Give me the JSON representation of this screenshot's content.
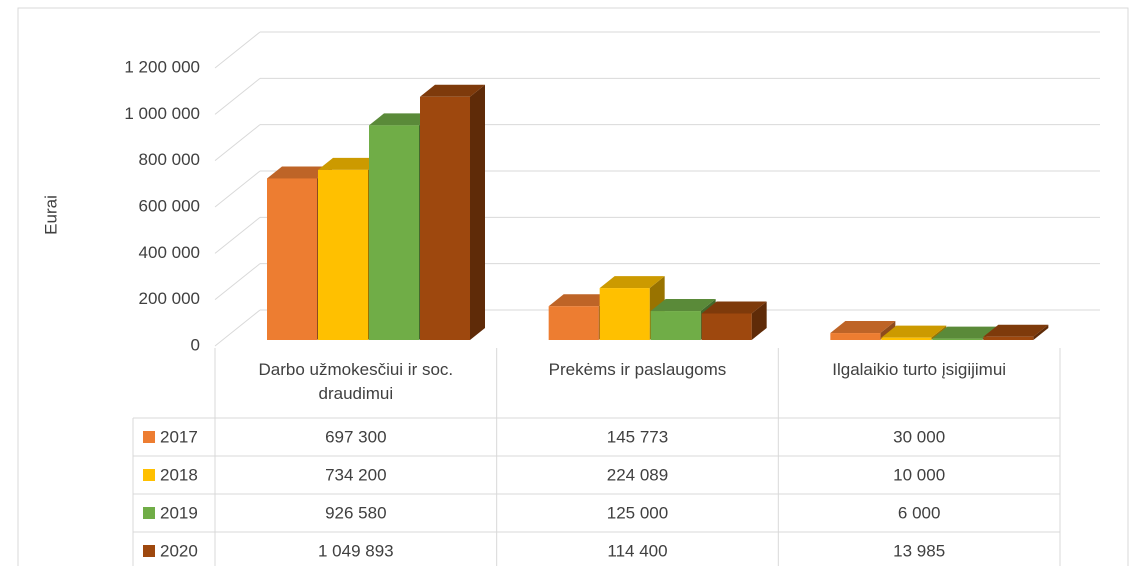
{
  "chart_data": {
    "type": "bar3d",
    "y_label": "Eurai",
    "categories": [
      "Darbo užmokesčiui ir soc. draudimui",
      "Prekėms ir paslaugoms",
      "Ilgalaikio turto įsigijimui"
    ],
    "series": [
      {
        "name": "2017",
        "color": "#ed7d31",
        "values": [
          697300,
          145773,
          30000
        ],
        "value_labels": [
          "697 300",
          "145 773",
          "30 000"
        ]
      },
      {
        "name": "2018",
        "color": "#ffc000",
        "values": [
          734200,
          224089,
          10000
        ],
        "value_labels": [
          "734 200",
          "224 089",
          "10 000"
        ]
      },
      {
        "name": "2019",
        "color": "#70ad47",
        "values": [
          926580,
          125000,
          6000
        ],
        "value_labels": [
          "926 580",
          "125 000",
          "6 000"
        ]
      },
      {
        "name": "2020",
        "color": "#9e480e",
        "values": [
          1049893,
          114400,
          13985
        ],
        "value_labels": [
          "1 049 893",
          "114 400",
          "13 985"
        ]
      }
    ],
    "ylim": [
      0,
      1200000
    ],
    "yticks": [
      0,
      {
        "value": 200000,
        "label": "200 000"
      },
      {
        "value": 400000,
        "label": "400 000"
      },
      {
        "value": 600000,
        "label": "600 000"
      },
      {
        "value": 800000,
        "label": "800 000"
      },
      {
        "value": 1000000,
        "label": "1 000 000"
      },
      {
        "value": 1200000,
        "label": "1 200 000"
      }
    ],
    "grid": true,
    "data_table": true
  }
}
